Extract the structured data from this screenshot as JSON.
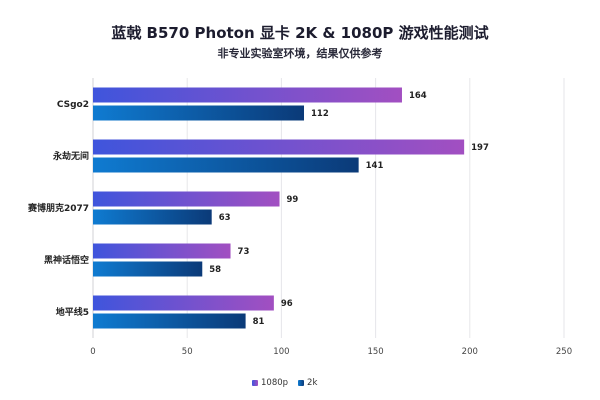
{
  "chart_data": {
    "type": "bar",
    "orientation": "horizontal",
    "title": "蓝戟 B570 Photon  显卡 2K & 1080P 游戏性能测试",
    "subtitle": "非专业实验室环境，结果仅供参考",
    "categories": [
      "CSgo2",
      "永劫无间",
      "赛博朋克2077",
      "黑神话悟空",
      "地平线5"
    ],
    "series": [
      {
        "name": "1080p",
        "values": [
          164,
          197,
          99,
          73,
          96
        ],
        "color_start": "#3f55dc",
        "color_end": "#a24fc1"
      },
      {
        "name": "2k",
        "values": [
          112,
          141,
          63,
          58,
          81
        ],
        "color_start": "#0f7bd1",
        "color_end": "#0b3a78"
      }
    ],
    "xlim": [
      0,
      250
    ],
    "xticks": [
      "0",
      "50",
      "100",
      "150",
      "200",
      "250"
    ],
    "grid": true,
    "legend": "bottom-center"
  }
}
